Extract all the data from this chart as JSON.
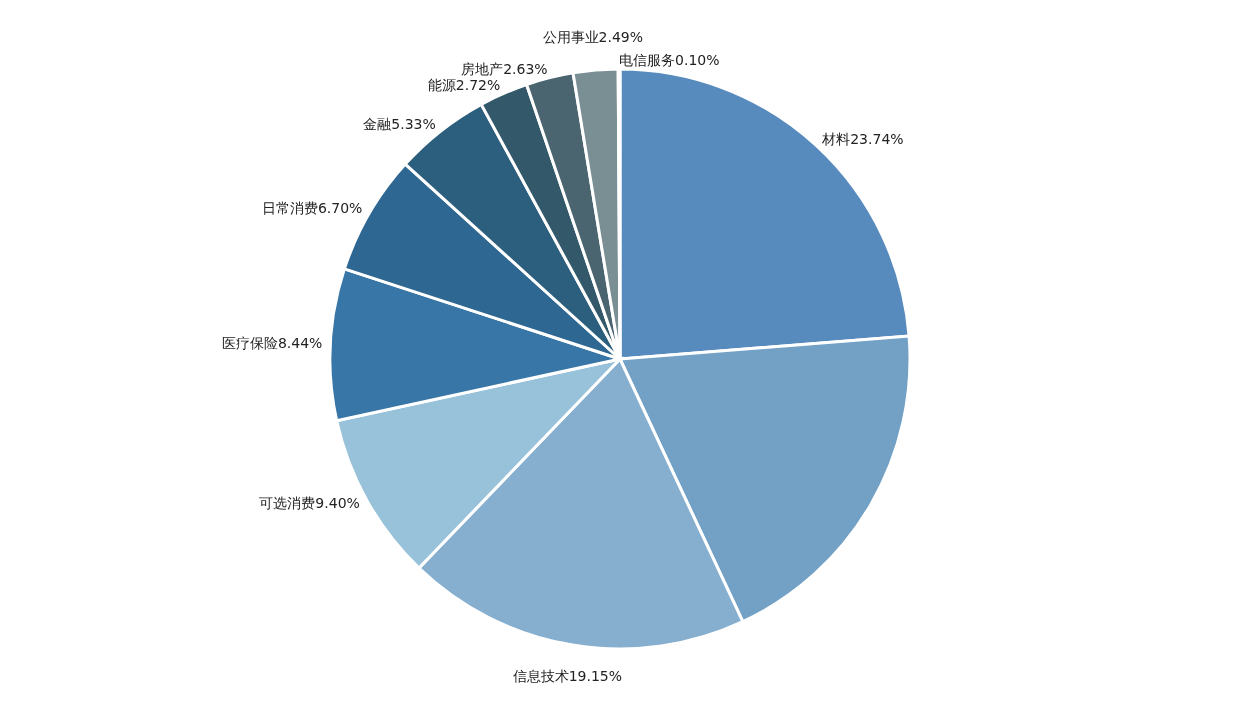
{
  "chart_data": {
    "type": "pie",
    "categories": [
      "材料",
      null,
      "信息技术",
      "可选消费",
      "医疗保险",
      "日常消费",
      "金融",
      "能源",
      "房地产",
      "公用事业",
      "电信服务"
    ],
    "values": [
      23.74,
      19.3,
      19.15,
      9.4,
      8.44,
      6.7,
      5.33,
      2.72,
      2.63,
      2.49,
      0.1
    ],
    "value_labels": [
      "23.74%",
      null,
      "19.15%",
      "9.40%",
      "8.44%",
      "6.70%",
      "5.33%",
      "2.72%",
      "2.63%",
      "2.49%",
      "0.10%"
    ],
    "colors": [
      "#588bbd",
      "#73a1c5",
      "#86afcf",
      "#98c2da",
      "#3776a6",
      "#2e6791",
      "#2c5e7d",
      "#32586a",
      "#4a6570",
      "#7a8f94",
      "#9aa9ad"
    ]
  }
}
